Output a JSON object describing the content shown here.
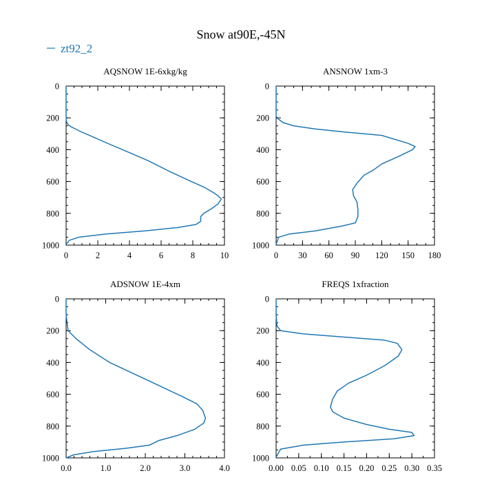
{
  "figure": {
    "title": "Snow at90E,-45N",
    "legend_label": "zt92_2",
    "series_color": "#1f77b4"
  },
  "chart_data": [
    {
      "type": "line",
      "title": "AQSNOW  1E-6xkg/kg",
      "xlabel": "",
      "ylabel": "",
      "xlim": [
        0,
        10
      ],
      "ylim": [
        1000,
        0
      ],
      "xticks": [
        0,
        2,
        4,
        6,
        8,
        10
      ],
      "xtick_labels": [
        "0",
        "2",
        "4",
        "6",
        "8",
        "10"
      ],
      "xminor_step": 0.5,
      "yticks": [
        0,
        200,
        400,
        600,
        800,
        1000
      ],
      "ytick_labels": [
        "0",
        "200",
        "400",
        "600",
        "800",
        "1000"
      ],
      "yminor_step": 50,
      "series": [
        {
          "name": "zt92_2",
          "x": [
            0,
            0,
            0,
            0.02,
            0.1,
            0.3,
            0.6,
            1.0,
            1.6,
            2.5,
            3.8,
            5.2,
            6.6,
            7.9,
            8.8,
            9.3,
            9.6,
            9.8,
            9.6,
            9.2,
            8.7,
            8.5,
            8.5,
            8.2,
            7.0,
            5.0,
            2.5,
            0.8,
            0.2,
            0
          ],
          "y": [
            0,
            100,
            190,
            220,
            240,
            255,
            270,
            290,
            315,
            355,
            410,
            470,
            540,
            600,
            640,
            670,
            690,
            710,
            740,
            770,
            800,
            820,
            850,
            870,
            890,
            910,
            930,
            950,
            970,
            995
          ]
        }
      ]
    },
    {
      "type": "line",
      "title": "ANSNOW  1xm-3",
      "xlabel": "",
      "ylabel": "",
      "xlim": [
        0,
        180
      ],
      "ylim": [
        1000,
        0
      ],
      "xticks": [
        0,
        30,
        60,
        90,
        120,
        150,
        180
      ],
      "xtick_labels": [
        "0",
        "30",
        "60",
        "90",
        "120",
        "150",
        "180"
      ],
      "xminor_step": 10,
      "yticks": [
        0,
        200,
        400,
        600,
        800,
        1000
      ],
      "ytick_labels": [
        "0",
        "200",
        "400",
        "600",
        "800",
        "1000"
      ],
      "yminor_step": 50,
      "series": [
        {
          "name": "zt92_2",
          "x": [
            0,
            0,
            0,
            2,
            8,
            20,
            45,
            80,
            120,
            150,
            158,
            155,
            140,
            120,
            110,
            100,
            92,
            87,
            88,
            92,
            93,
            93,
            90,
            75,
            45,
            15,
            3,
            0
          ],
          "y": [
            0,
            100,
            190,
            205,
            230,
            250,
            270,
            290,
            310,
            360,
            380,
            400,
            440,
            490,
            530,
            560,
            610,
            650,
            690,
            730,
            780,
            820,
            860,
            880,
            910,
            930,
            950,
            995
          ]
        }
      ]
    },
    {
      "type": "line",
      "title": "ADSNOW  1E-4xm",
      "xlabel": "",
      "ylabel": "",
      "xlim": [
        0,
        4
      ],
      "ylim": [
        1000,
        0
      ],
      "xticks": [
        0,
        1,
        2,
        3,
        4
      ],
      "xtick_labels": [
        "0.0",
        "1.0",
        "2.0",
        "3.0",
        "4.0"
      ],
      "xminor_step": 0.2,
      "yticks": [
        0,
        200,
        400,
        600,
        800,
        1000
      ],
      "ytick_labels": [
        "0",
        "200",
        "400",
        "600",
        "800",
        "1000"
      ],
      "yminor_step": 50,
      "series": [
        {
          "name": "zt92_2",
          "x": [
            0,
            0,
            0.05,
            0.25,
            0.6,
            1.1,
            1.7,
            2.3,
            2.9,
            3.3,
            3.45,
            3.52,
            3.48,
            3.25,
            2.8,
            2.35,
            2.1,
            1.5,
            0.7,
            0.2,
            0
          ],
          "y": [
            0,
            100,
            200,
            250,
            320,
            400,
            470,
            540,
            610,
            660,
            700,
            750,
            780,
            820,
            860,
            890,
            920,
            940,
            960,
            980,
            1000
          ]
        }
      ]
    },
    {
      "type": "line",
      "title": "FREQS  1xfraction",
      "xlabel": "",
      "ylabel": "",
      "xlim": [
        0,
        0.35
      ],
      "ylim": [
        1000,
        0
      ],
      "xticks": [
        0,
        0.05,
        0.1,
        0.15,
        0.2,
        0.25,
        0.3,
        0.35
      ],
      "xtick_labels": [
        "0.00",
        "0.05",
        "0.10",
        "0.15",
        "0.20",
        "0.25",
        "0.30",
        "0.35"
      ],
      "xminor_step": 0.025,
      "yticks": [
        0,
        200,
        400,
        600,
        800,
        1000
      ],
      "ytick_labels": [
        "0",
        "200",
        "400",
        "600",
        "800",
        "1000"
      ],
      "yminor_step": 50,
      "series": [
        {
          "name": "zt92_2",
          "x": [
            0,
            0,
            0.002,
            0.01,
            0.06,
            0.15,
            0.24,
            0.268,
            0.278,
            0.27,
            0.24,
            0.2,
            0.16,
            0.135,
            0.125,
            0.12,
            0.125,
            0.15,
            0.2,
            0.25,
            0.3,
            0.305,
            0.26,
            0.15,
            0.06,
            0.01,
            0
          ],
          "y": [
            0,
            100,
            170,
            200,
            220,
            240,
            260,
            280,
            320,
            360,
            420,
            480,
            530,
            580,
            630,
            680,
            710,
            750,
            790,
            820,
            840,
            860,
            880,
            900,
            920,
            945,
            995
          ]
        }
      ]
    }
  ]
}
